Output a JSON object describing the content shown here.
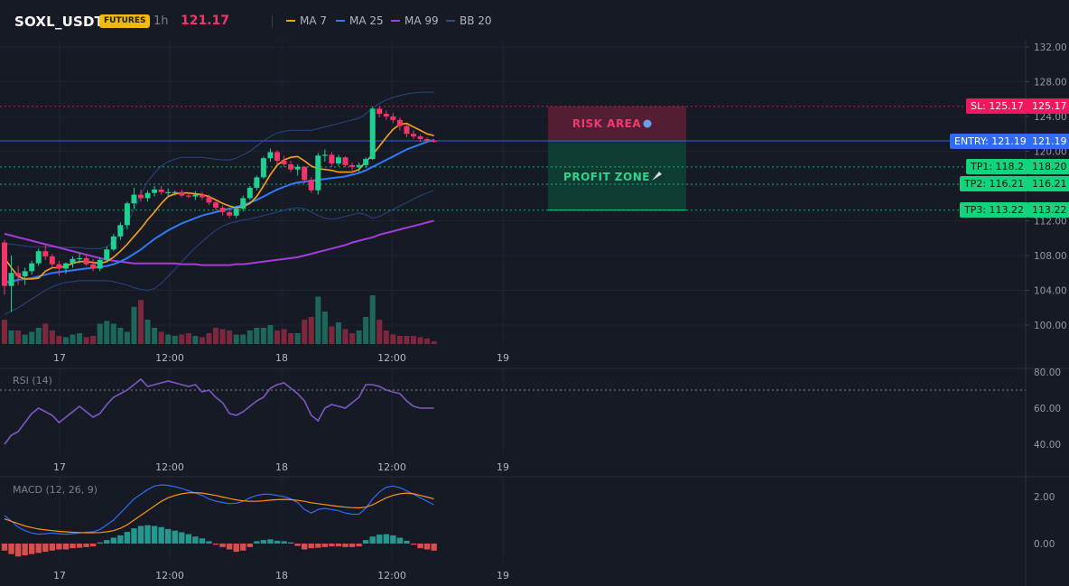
{
  "header": {
    "symbol": "SOXL_USDT",
    "badge": "FUTURES",
    "timeframe": "1h",
    "last_price": "121.17",
    "legend": [
      {
        "label": "MA 7",
        "color": "#f7a21b"
      },
      {
        "label": "MA 25",
        "color": "#2f7bf5"
      },
      {
        "label": "MA 99",
        "color": "#a53bd8"
      },
      {
        "label": "BB 20",
        "color": "#2f4a8a"
      }
    ]
  },
  "price_scale": [
    "132.00",
    "128.00",
    "124.00",
    "120.00",
    "116.00",
    "112.00",
    "108.00",
    "104.00",
    "100.00"
  ],
  "rsi_scale": [
    "80.00",
    "60.00",
    "40.00"
  ],
  "macd_scale": [
    "2.00",
    "0.00"
  ],
  "time_labels": [
    "17",
    "12:00",
    "18",
    "12:00",
    "19"
  ],
  "rsi_label": "RSI (14)",
  "macd_label": "MACD (12, 26, 9)",
  "zones": {
    "risk": "RISK AREA",
    "profit": "PROFIT ZONE"
  },
  "price_tags": {
    "sl": {
      "label": "SL: 125.17",
      "value": "125.17"
    },
    "entry": {
      "label": "ENTRY: 121.19",
      "value": "121.19"
    },
    "tp1": {
      "label": "TP1: 118.2",
      "value": "118.20"
    },
    "tp2": {
      "label": "TP2: 116.21",
      "value": "116.21"
    },
    "tp3": {
      "label": "TP3: 113.22",
      "value": "113.22"
    }
  },
  "colors": {
    "up": "#1ed192",
    "down": "#f23669",
    "entry": "#2f6bf5",
    "sl": "#f0185e",
    "tp": "#12d47e"
  },
  "chart_data": {
    "type": "candlestick",
    "x_labels": [
      "17",
      "12:00",
      "18",
      "12:00",
      "19"
    ],
    "ylim": [
      98,
      133
    ],
    "candles": [
      [
        109.5,
        109.8,
        103.5,
        104.5
      ],
      [
        104.5,
        108.0,
        101.5,
        106.0
      ],
      [
        106.0,
        106.8,
        104.6,
        105.6
      ],
      [
        105.6,
        106.6,
        104.6,
        106.2
      ],
      [
        106.2,
        107.4,
        105.8,
        107.1
      ],
      [
        107.1,
        108.8,
        106.8,
        108.5
      ],
      [
        108.5,
        109.2,
        107.5,
        107.9
      ],
      [
        107.9,
        108.2,
        106.6,
        107.0
      ],
      [
        107.0,
        107.4,
        105.7,
        106.5
      ],
      [
        106.5,
        107.2,
        105.9,
        107.1
      ],
      [
        107.1,
        107.9,
        106.6,
        107.6
      ],
      [
        107.6,
        108.3,
        107.1,
        107.7
      ],
      [
        107.7,
        108.1,
        106.8,
        107.0
      ],
      [
        107.0,
        107.6,
        106.2,
        106.5
      ],
      [
        106.5,
        107.8,
        106.2,
        107.5
      ],
      [
        107.5,
        109.0,
        107.2,
        108.7
      ],
      [
        108.7,
        110.5,
        108.5,
        110.2
      ],
      [
        110.2,
        111.8,
        109.8,
        111.5
      ],
      [
        111.5,
        114.2,
        111.0,
        114.0
      ],
      [
        114.0,
        115.8,
        113.4,
        115.0
      ],
      [
        115.0,
        115.6,
        114.2,
        114.6
      ],
      [
        114.6,
        115.5,
        114.2,
        115.2
      ],
      [
        115.2,
        116.0,
        114.8,
        115.6
      ],
      [
        115.6,
        116.0,
        115.0,
        115.3
      ],
      [
        115.3,
        115.7,
        114.8,
        115.3
      ],
      [
        115.3,
        115.5,
        114.9,
        115.3
      ],
      [
        115.3,
        115.6,
        114.7,
        114.9
      ],
      [
        114.9,
        115.3,
        114.6,
        114.8
      ],
      [
        114.8,
        115.4,
        114.4,
        115.0
      ],
      [
        115.0,
        115.3,
        114.4,
        114.7
      ],
      [
        114.7,
        115.0,
        113.8,
        114.1
      ],
      [
        114.1,
        114.4,
        113.2,
        113.5
      ],
      [
        113.5,
        113.8,
        112.6,
        113.0
      ],
      [
        113.0,
        113.4,
        112.3,
        112.6
      ],
      [
        112.6,
        113.7,
        112.3,
        113.4
      ],
      [
        113.4,
        114.9,
        113.1,
        114.6
      ],
      [
        114.6,
        116.0,
        114.4,
        115.8
      ],
      [
        115.8,
        117.2,
        115.5,
        117.0
      ],
      [
        117.0,
        119.4,
        116.8,
        119.2
      ],
      [
        119.2,
        120.3,
        118.8,
        119.9
      ],
      [
        119.9,
        120.1,
        118.5,
        118.9
      ],
      [
        118.9,
        119.5,
        118.2,
        118.5
      ],
      [
        118.5,
        118.9,
        117.6,
        117.9
      ],
      [
        117.9,
        118.5,
        117.2,
        118.2
      ],
      [
        118.2,
        118.3,
        116.3,
        116.7
      ],
      [
        116.7,
        117.0,
        115.2,
        115.5
      ],
      [
        115.5,
        119.8,
        115.0,
        119.5
      ],
      [
        119.5,
        120.2,
        118.8,
        119.6
      ],
      [
        119.6,
        119.9,
        118.2,
        118.6
      ],
      [
        118.6,
        119.6,
        118.3,
        119.3
      ],
      [
        119.3,
        119.4,
        118.2,
        118.4
      ],
      [
        118.4,
        118.7,
        117.8,
        118.2
      ],
      [
        118.2,
        118.7,
        117.6,
        118.4
      ],
      [
        118.4,
        119.3,
        118.1,
        119.1
      ],
      [
        119.1,
        125.1,
        119.0,
        124.9
      ],
      [
        124.9,
        125.2,
        123.9,
        124.3
      ],
      [
        124.3,
        124.7,
        123.6,
        124.0
      ],
      [
        124.0,
        124.4,
        123.2,
        123.6
      ],
      [
        123.6,
        123.9,
        122.4,
        122.9
      ],
      [
        122.9,
        123.1,
        121.6,
        122.0
      ],
      [
        122.0,
        122.4,
        121.4,
        121.7
      ],
      [
        121.7,
        121.9,
        121.1,
        121.4
      ],
      [
        121.4,
        121.6,
        121.0,
        121.2
      ],
      [
        121.2,
        121.4,
        121.0,
        121.17
      ]
    ],
    "volume": [
      3.6,
      2.0,
      2.0,
      1.4,
      1.8,
      2.4,
      3.0,
      2.0,
      1.2,
      1.0,
      1.4,
      1.6,
      1.0,
      1.2,
      3.0,
      3.4,
      3.0,
      2.4,
      1.8,
      5.5,
      6.5,
      3.6,
      2.4,
      1.8,
      1.4,
      1.2,
      1.4,
      1.6,
      1.2,
      1.0,
      1.6,
      2.4,
      2.2,
      2.0,
      1.4,
      1.4,
      2.0,
      2.4,
      2.4,
      2.8,
      2.0,
      2.2,
      1.6,
      1.6,
      3.6,
      4.0,
      7.0,
      4.8,
      2.6,
      3.2,
      2.2,
      1.6,
      2.0,
      4.0,
      7.2,
      3.6,
      2.0,
      1.4,
      1.2,
      1.2,
      1.2,
      1.0,
      0.8,
      0.4
    ],
    "ma7": [
      107.7,
      106.6,
      105.6,
      105.3,
      105.3,
      105.4,
      106.2,
      106.6,
      106.6,
      106.8,
      107.1,
      107.3,
      107.3,
      107.2,
      107.1,
      107.3,
      107.8,
      108.5,
      109.3,
      110.2,
      111.1,
      112.1,
      113.0,
      114.0,
      114.8,
      115.1,
      115.2,
      115.2,
      115.1,
      115.0,
      114.8,
      114.4,
      114.0,
      113.7,
      113.5,
      113.6,
      114.0,
      114.8,
      116.0,
      117.3,
      118.4,
      119.0,
      119.3,
      119.4,
      118.9,
      118.3,
      118.0,
      117.9,
      117.8,
      117.6,
      117.6,
      117.6,
      117.9,
      118.8,
      119.6,
      120.6,
      121.6,
      122.5,
      123.1,
      123.2,
      122.8,
      122.4,
      122.0,
      121.8
    ],
    "ma25": [
      104.9,
      105.0,
      105.2,
      105.3,
      105.4,
      105.6,
      105.8,
      106.0,
      106.1,
      106.2,
      106.3,
      106.4,
      106.5,
      106.6,
      106.7,
      106.8,
      107.0,
      107.3,
      107.7,
      108.2,
      108.7,
      109.3,
      109.9,
      110.4,
      110.9,
      111.3,
      111.7,
      112.0,
      112.3,
      112.6,
      112.8,
      113.0,
      113.2,
      113.4,
      113.6,
      113.8,
      114.1,
      114.4,
      114.8,
      115.2,
      115.6,
      115.9,
      116.2,
      116.4,
      116.5,
      116.6,
      116.7,
      116.8,
      116.9,
      117.0,
      117.1,
      117.3,
      117.5,
      117.8,
      118.2,
      118.6,
      119.0,
      119.4,
      119.8,
      120.2,
      120.5,
      120.8,
      121.1,
      121.3
    ],
    "ma99": [
      110.5,
      110.3,
      110.1,
      109.9,
      109.7,
      109.5,
      109.3,
      109.1,
      108.9,
      108.7,
      108.5,
      108.3,
      108.1,
      107.9,
      107.7,
      107.5,
      107.4,
      107.3,
      107.2,
      107.1,
      107.1,
      107.1,
      107.1,
      107.1,
      107.1,
      107.1,
      107.0,
      107.0,
      107.0,
      106.9,
      106.9,
      106.9,
      106.9,
      106.9,
      107.0,
      107.0,
      107.1,
      107.2,
      107.3,
      107.4,
      107.5,
      107.6,
      107.7,
      107.8,
      108.0,
      108.2,
      108.4,
      108.6,
      108.8,
      109.0,
      109.2,
      109.5,
      109.7,
      109.9,
      110.1,
      110.4,
      110.6,
      110.8,
      111.0,
      111.2,
      111.4,
      111.6,
      111.8,
      112.0
    ],
    "bb_upper": [
      109.4,
      109.3,
      109.2,
      109.1,
      109.0,
      109.0,
      109.0,
      109.0,
      109.0,
      108.9,
      108.9,
      108.9,
      108.8,
      108.8,
      108.8,
      109.0,
      109.6,
      110.5,
      111.6,
      113.3,
      115.0,
      116.5,
      117.5,
      118.3,
      118.8,
      119.1,
      119.3,
      119.3,
      119.3,
      119.3,
      119.2,
      119.1,
      119.0,
      119.0,
      119.2,
      119.6,
      120.0,
      120.6,
      121.2,
      121.7,
      122.1,
      122.3,
      122.4,
      122.4,
      122.4,
      122.4,
      122.6,
      122.8,
      123.0,
      123.2,
      123.4,
      123.6,
      123.8,
      124.3,
      125.0,
      125.5,
      125.9,
      126.2,
      126.4,
      126.6,
      126.7,
      126.8,
      126.8,
      126.8
    ],
    "bb_lower": [
      101.2,
      101.6,
      102.0,
      102.5,
      103.0,
      103.5,
      104.0,
      104.4,
      104.7,
      104.9,
      105.0,
      105.1,
      105.1,
      105.1,
      105.1,
      105.1,
      105.0,
      104.8,
      104.6,
      104.3,
      104.1,
      104.0,
      104.2,
      104.8,
      105.6,
      106.4,
      107.3,
      108.1,
      108.9,
      109.6,
      110.3,
      110.9,
      111.4,
      111.7,
      111.9,
      112.1,
      112.2,
      112.4,
      112.6,
      112.8,
      113.0,
      113.2,
      113.4,
      113.5,
      113.4,
      113.0,
      112.6,
      112.3,
      112.2,
      112.3,
      112.5,
      112.7,
      112.9,
      112.7,
      112.3,
      112.5,
      112.9,
      113.3,
      113.7,
      114.1,
      114.5,
      114.9,
      115.2,
      115.5
    ],
    "rsi": [
      40,
      45,
      47,
      52,
      57,
      60,
      58,
      56,
      52,
      55,
      58,
      61,
      58,
      55,
      57,
      62,
      66,
      68,
      70,
      73,
      76,
      72,
      73,
      74,
      75,
      74,
      73,
      72,
      73,
      69,
      70,
      66,
      63,
      57,
      56,
      58,
      61,
      64,
      66,
      71,
      73,
      74,
      71,
      68,
      64,
      56,
      53,
      60,
      62,
      61,
      60,
      63,
      66,
      73,
      73,
      72,
      70,
      69,
      68,
      64,
      61,
      60,
      60,
      60
    ],
    "rsi_ylim": [
      35,
      82
    ],
    "macd_line": [
      1.2,
      0.95,
      0.7,
      0.55,
      0.45,
      0.4,
      0.42,
      0.45,
      0.42,
      0.4,
      0.42,
      0.45,
      0.48,
      0.5,
      0.6,
      0.8,
      1.0,
      1.3,
      1.6,
      1.9,
      2.1,
      2.3,
      2.45,
      2.5,
      2.48,
      2.42,
      2.35,
      2.25,
      2.15,
      2.05,
      1.9,
      1.8,
      1.75,
      1.7,
      1.72,
      1.8,
      1.95,
      2.05,
      2.1,
      2.1,
      2.05,
      2.0,
      1.9,
      1.75,
      1.45,
      1.3,
      1.45,
      1.5,
      1.45,
      1.4,
      1.3,
      1.25,
      1.25,
      1.5,
      1.9,
      2.2,
      2.4,
      2.45,
      2.38,
      2.25,
      2.1,
      1.95,
      1.8,
      1.65
    ],
    "signal_line": [
      1.05,
      0.95,
      0.85,
      0.75,
      0.68,
      0.62,
      0.58,
      0.55,
      0.52,
      0.5,
      0.48,
      0.47,
      0.46,
      0.46,
      0.47,
      0.5,
      0.55,
      0.65,
      0.8,
      1.0,
      1.2,
      1.4,
      1.6,
      1.8,
      1.95,
      2.05,
      2.12,
      2.16,
      2.17,
      2.15,
      2.1,
      2.05,
      1.98,
      1.92,
      1.86,
      1.82,
      1.8,
      1.8,
      1.82,
      1.85,
      1.87,
      1.88,
      1.87,
      1.84,
      1.8,
      1.74,
      1.7,
      1.66,
      1.62,
      1.58,
      1.55,
      1.53,
      1.52,
      1.55,
      1.65,
      1.8,
      1.95,
      2.05,
      2.12,
      2.15,
      2.12,
      2.05,
      1.98,
      1.9
    ],
    "macd_hist": [
      -0.3,
      -0.45,
      -0.55,
      -0.5,
      -0.45,
      -0.4,
      -0.35,
      -0.3,
      -0.25,
      -0.25,
      -0.2,
      -0.18,
      -0.15,
      -0.12,
      0.05,
      0.15,
      0.25,
      0.35,
      0.5,
      0.65,
      0.75,
      0.78,
      0.75,
      0.7,
      0.62,
      0.55,
      0.48,
      0.4,
      0.3,
      0.22,
      0.1,
      -0.05,
      -0.15,
      -0.25,
      -0.35,
      -0.3,
      -0.15,
      0.1,
      0.15,
      0.18,
      0.12,
      0.1,
      0.05,
      -0.1,
      -0.25,
      -0.2,
      -0.18,
      -0.15,
      -0.12,
      -0.12,
      -0.15,
      -0.15,
      -0.12,
      0.15,
      0.3,
      0.38,
      0.4,
      0.35,
      0.25,
      0.12,
      -0.05,
      -0.2,
      -0.25,
      -0.3
    ],
    "macd_ylim": [
      -1.0,
      3.0
    ]
  }
}
